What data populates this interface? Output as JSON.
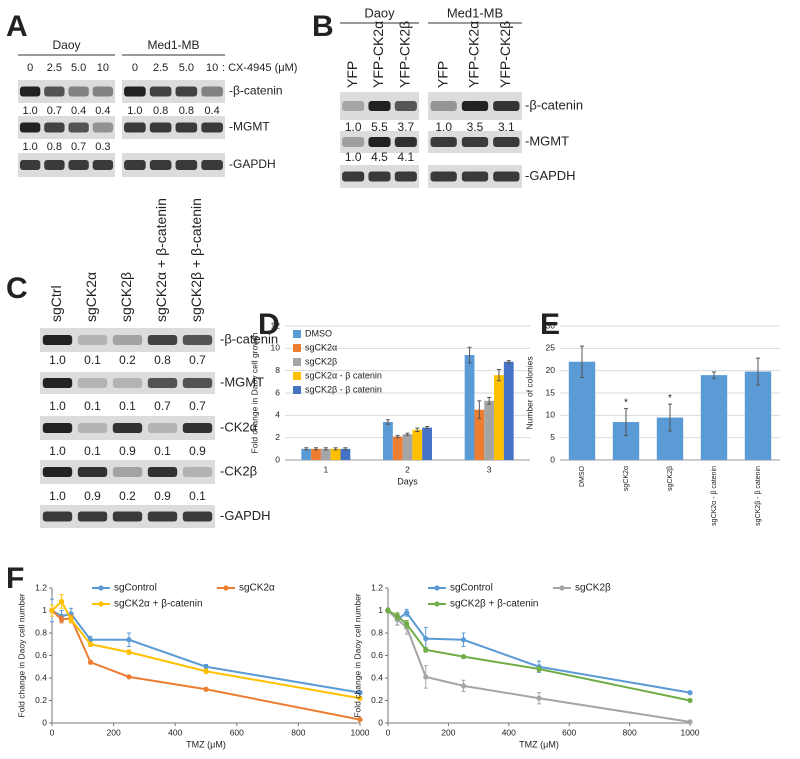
{
  "panels": [
    "A",
    "B",
    "C",
    "D",
    "E",
    "F"
  ],
  "blots": [
    {
      "condition": ": CX-4945 (μM)",
      "groups": [
        {
          "name": "Daoy",
          "lanes": [
            "0",
            "2.5",
            "5.0",
            "10"
          ],
          "quant": [
            [
              "1.0",
              "0.7",
              "0.4",
              "0.4"
            ],
            [
              "1.0",
              "0.8",
              "0.7",
              "0.3"
            ],
            null
          ]
        },
        {
          "name": "Med1-MB",
          "lanes": [
            "0",
            "2.5",
            "5.0",
            "10"
          ],
          "quant": [
            [
              "1.0",
              "0.8",
              "0.8",
              "0.4"
            ],
            null,
            null
          ]
        }
      ],
      "rows": [
        "-β-catenin",
        "-MGMT",
        "-GAPDH"
      ]
    },
    {
      "groups": [
        {
          "name": "Daoy",
          "lanes": [
            "YFP",
            "YFP-CK2α",
            "YFP-CK2β"
          ],
          "quant": [
            [
              "1.0",
              "5.5",
              "3.7"
            ],
            [
              "1.0",
              "4.5",
              "4.1"
            ],
            null
          ]
        },
        {
          "name": "Med1-MB",
          "lanes": [
            "YFP",
            "YFP-CK2α",
            "YFP-CK2β"
          ],
          "quant": [
            [
              "1.0",
              "3.5",
              "3.1"
            ],
            null,
            null
          ]
        }
      ],
      "rows": [
        "-β-catenin",
        "-MGMT",
        "-GAPDH"
      ]
    },
    {
      "groups": [
        {
          "lanes": [
            "sgCtrl",
            "sgCK2α",
            "sgCK2β",
            "sgCK2α + β-catenin",
            "sgCK2β + β-catenin"
          ],
          "quant": [
            [
              "1.0",
              "0.1",
              "0.2",
              "0.8",
              "0.7"
            ],
            [
              "1.0",
              "0.1",
              "0.1",
              "0.7",
              "0.7"
            ],
            [
              "1.0",
              "0.1",
              "0.9",
              "0.1",
              "0.9"
            ],
            [
              "1.0",
              "0.9",
              "0.2",
              "0.9",
              "0.1"
            ],
            null
          ]
        }
      ],
      "rows": [
        "-β-catenin",
        "-MGMT",
        "-CK2α",
        "-CK2β",
        "-GAPDH"
      ]
    }
  ],
  "chart_data": [
    {
      "type": "bar",
      "y_label": "Fold change in Daoy cell growth",
      "x_label": "Days",
      "categories": [
        "1",
        "2",
        "3"
      ],
      "ylim": [
        0,
        12
      ],
      "yticks": [
        0,
        2,
        4,
        6,
        8,
        10,
        12
      ],
      "grid": true,
      "legend": "upper-left",
      "series": [
        {
          "name": "DMSO",
          "color": "#5b9bd5",
          "values": [
            1.0,
            3.4,
            9.4
          ],
          "errors": [
            0.1,
            0.2,
            0.7
          ]
        },
        {
          "name": "sgCK2α",
          "color": "#ed7d31",
          "values": [
            1.0,
            2.1,
            4.5
          ],
          "errors": [
            0.1,
            0.1,
            0.8
          ]
        },
        {
          "name": "sgCK2β",
          "color": "#a5a5a5",
          "values": [
            1.0,
            2.3,
            5.3
          ],
          "errors": [
            0.1,
            0.1,
            0.3
          ]
        },
        {
          "name": "sgCK2α - β catenin",
          "color": "#ffc000",
          "values": [
            1.0,
            2.7,
            7.6
          ],
          "errors": [
            0.1,
            0.15,
            0.5
          ]
        },
        {
          "name": "sgCK2β - β catenin",
          "color": "#4472c4",
          "values": [
            1.0,
            2.9,
            8.8
          ],
          "errors": [
            0.1,
            0.1,
            0.1
          ]
        }
      ]
    },
    {
      "type": "bar",
      "y_label": "Number of colonies",
      "categories": [
        "DMSO",
        "sgCK2α",
        "sgCK2β",
        "sgCK2α - β catenin",
        "sgCK2β - β catenin"
      ],
      "values": [
        22,
        8.5,
        9.5,
        19,
        19.8
      ],
      "errors": [
        3.5,
        3,
        3,
        0.7,
        3
      ],
      "color": "#5b9bd5",
      "ylim": [
        0,
        30
      ],
      "yticks": [
        0,
        5,
        10,
        15,
        20,
        25,
        30
      ],
      "grid": true,
      "annotations": [
        {
          "text": "*",
          "category": "sgCK2α"
        },
        {
          "text": "*",
          "category": "sgCK2β"
        }
      ]
    },
    {
      "type": "line",
      "y_label": "Fold change in Daoy cell number",
      "x_label": "TMZ (μM)",
      "x": [
        0,
        31,
        62,
        125,
        250,
        500,
        1000
      ],
      "xlim": [
        0,
        1000
      ],
      "xticks": [
        0,
        200,
        400,
        600,
        800,
        1000
      ],
      "ylim": [
        0,
        1.2
      ],
      "yticks": [
        0,
        0.2,
        0.4,
        0.6,
        0.8,
        1,
        1.2
      ],
      "legend": "top",
      "series": [
        {
          "name": "sgControl",
          "color": "#5b9bd5",
          "values": [
            1.0,
            0.95,
            0.97,
            0.74,
            0.74,
            0.5,
            0.27
          ],
          "errors": [
            0.1,
            0.05,
            0.05,
            0.03,
            0.06,
            0.02,
            0.01
          ]
        },
        {
          "name": "sgCK2α",
          "color": "#ed7d31",
          "values": [
            1.0,
            0.92,
            0.93,
            0.54,
            0.41,
            0.3,
            0.03
          ],
          "errors": [
            0.02,
            0.03,
            0.03,
            0.01,
            0.01,
            0.01,
            0.01
          ]
        },
        {
          "name": "sgCK2α + β-catenin",
          "color": "#ffc000",
          "values": [
            1.0,
            1.08,
            0.92,
            0.7,
            0.63,
            0.46,
            0.22
          ],
          "errors": [
            0.05,
            0.06,
            0.03,
            0.02,
            0.02,
            0.02,
            0.01
          ]
        }
      ]
    },
    {
      "type": "line",
      "y_label": "Fold change in Daoy cell number",
      "x_label": "TMZ (μM)",
      "x": [
        0,
        31,
        62,
        125,
        250,
        500,
        1000
      ],
      "xlim": [
        0,
        1000
      ],
      "xticks": [
        0,
        200,
        400,
        600,
        800,
        1000
      ],
      "ylim": [
        0,
        1.2
      ],
      "yticks": [
        0,
        0.2,
        0.4,
        0.6,
        0.8,
        1,
        1.2
      ],
      "legend": "top",
      "series": [
        {
          "name": "sgControl",
          "color": "#5b9bd5",
          "values": [
            1.0,
            0.92,
            0.98,
            0.75,
            0.74,
            0.5,
            0.27
          ],
          "errors": [
            0.02,
            0.05,
            0.03,
            0.1,
            0.06,
            0.05,
            0.01
          ]
        },
        {
          "name": "sgCK2β",
          "color": "#a5a5a5",
          "values": [
            1.0,
            0.92,
            0.85,
            0.41,
            0.33,
            0.22,
            0.01
          ],
          "errors": [
            0.02,
            0.05,
            0.06,
            0.1,
            0.05,
            0.05,
            0.01
          ]
        },
        {
          "name": "sgCK2β + β-catenin",
          "color": "#70ad47",
          "values": [
            1.0,
            0.95,
            0.88,
            0.65,
            0.59,
            0.48,
            0.2
          ],
          "errors": [
            0.02,
            0.03,
            0.03,
            0.02,
            0.01,
            0.02,
            0.01
          ]
        }
      ]
    }
  ]
}
